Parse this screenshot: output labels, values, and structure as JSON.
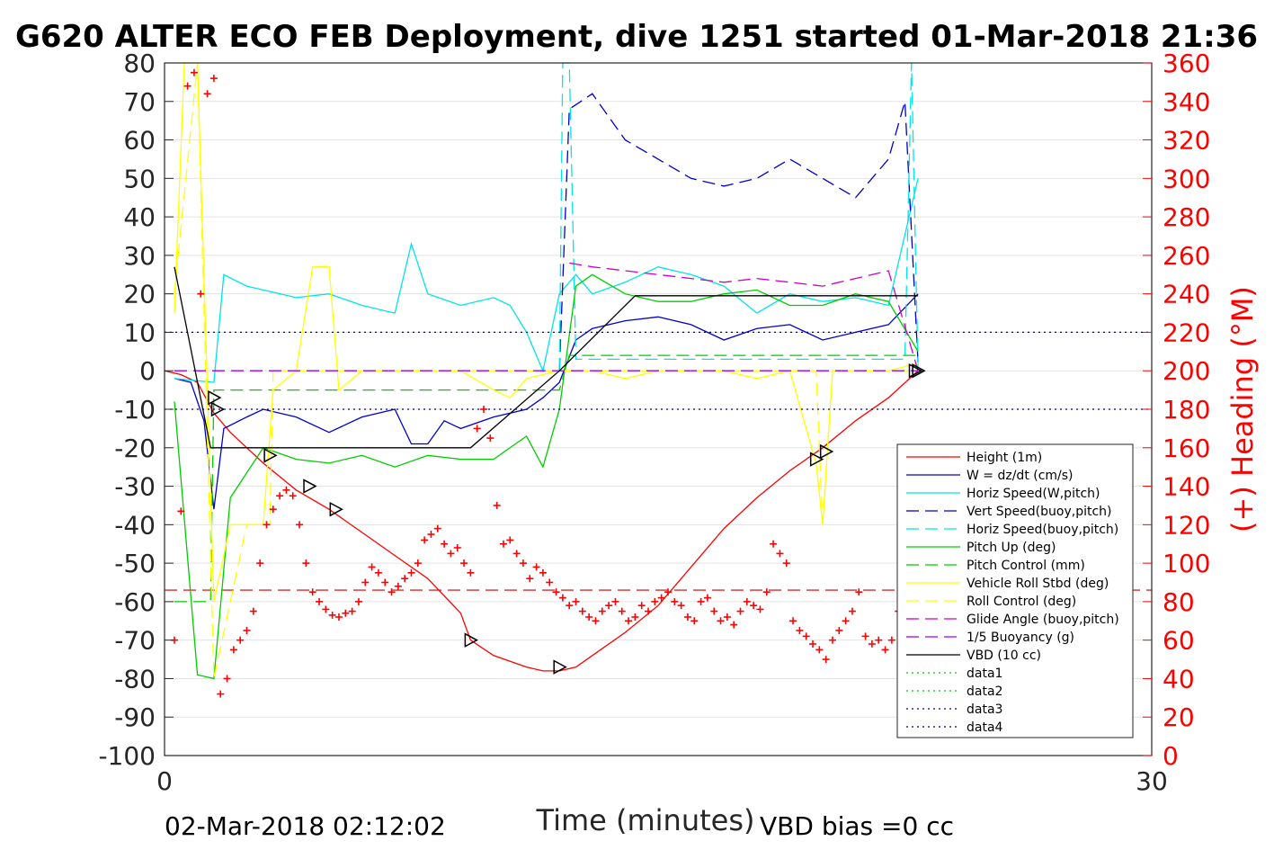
{
  "chart_data": {
    "type": "line",
    "title": "G620 ALTER ECO FEB Deployment, dive 1251 started 01-Mar-2018 21:36",
    "xlabel": "Time (minutes)",
    "ylabel_right": "(+) Heading (°M)",
    "xlim": [
      0,
      30
    ],
    "ylim_left": [
      -100,
      80
    ],
    "ylim_right": [
      0,
      360
    ],
    "x_ticks": [
      "0",
      "30"
    ],
    "y_ticks_left": [
      "80",
      "70",
      "60",
      "50",
      "40",
      "30",
      "20",
      "10",
      "0",
      "-10",
      "-20",
      "-30",
      "-40",
      "-50",
      "-60",
      "-70",
      "-80",
      "-90",
      "-100"
    ],
    "y_ticks_right": [
      "360",
      "340",
      "320",
      "300",
      "280",
      "260",
      "240",
      "220",
      "200",
      "180",
      "160",
      "140",
      "120",
      "100",
      "80",
      "60",
      "40",
      "20",
      "0"
    ],
    "grid": true,
    "legend_position": "lower-right",
    "footer_left": "02-Mar-2018 02:12:02",
    "footer_right": "VBD bias =0 cc",
    "series": [
      {
        "name": "Height (1m)",
        "color": "#ff0000",
        "style": "solid",
        "x": [
          0,
          0.5,
          1,
          1.5,
          2,
          3,
          4,
          5,
          6,
          7,
          8,
          9,
          9.3,
          10,
          11,
          11.5,
          12,
          12.5,
          13,
          14,
          15,
          16,
          17,
          18,
          19,
          20,
          21,
          22,
          22.9
        ],
        "y": [
          0,
          -1,
          -3,
          -11,
          -16,
          -24,
          -31,
          -36,
          -42,
          -48,
          -54,
          -63,
          -70,
          -74,
          -77,
          -78,
          -78,
          -77,
          -74,
          -68,
          -61,
          -51,
          -41,
          -33,
          -26,
          -20,
          -13,
          -7,
          0
        ]
      },
      {
        "name": "W = dz/dt (cm/s)",
        "color": "#0000cc",
        "style": "solid",
        "x": [
          0.3,
          0.8,
          1.2,
          1.5,
          1.8,
          2.5,
          3,
          4,
          5,
          6,
          7,
          7.5,
          8,
          8.5,
          9,
          10,
          11,
          11.5,
          12,
          12.5,
          13,
          14,
          15,
          16,
          17,
          18,
          19,
          20,
          21,
          22,
          22.9
        ],
        "y": [
          -2,
          -3,
          -13,
          -36,
          -15,
          -12,
          -10,
          -12,
          -16,
          -12,
          -10,
          -19,
          -19,
          -13,
          -15,
          -12,
          -10,
          -7,
          -3,
          8,
          11,
          13,
          14,
          12,
          8,
          11,
          12,
          8,
          10,
          12,
          20
        ]
      },
      {
        "name": "Horiz Speed(W,pitch)",
        "color": "#00e5e5",
        "style": "solid",
        "x": [
          0.3,
          1.5,
          1.8,
          2.5,
          3,
          4,
          5,
          6,
          7,
          7.5,
          8,
          9,
          10,
          10.5,
          11,
          11.5,
          12,
          12.5,
          13,
          14,
          15,
          16,
          17,
          18,
          19,
          20,
          21,
          22,
          22.9
        ],
        "y": [
          -2,
          -3,
          25,
          22,
          21,
          19,
          20,
          17,
          15,
          33,
          20,
          17,
          19,
          17,
          10,
          0,
          20,
          25,
          20,
          23,
          27,
          25,
          22,
          15,
          20,
          18,
          19,
          17,
          50
        ]
      },
      {
        "name": "Vert Speed(buoy,pitch)",
        "color": "#0000cc",
        "style": "dashed",
        "x": [
          12,
          12.3,
          13,
          14,
          15,
          16,
          17,
          18,
          19,
          20,
          21,
          22,
          22.5,
          22.9
        ],
        "y": [
          0,
          68,
          72,
          60,
          55,
          50,
          48,
          50,
          55,
          50,
          45,
          55,
          70,
          2
        ]
      },
      {
        "name": "Horiz Speed(buoy,pitch)",
        "color": "#00e5e5",
        "style": "dashed",
        "x": [
          12,
          12.1,
          12.3,
          12.5,
          22.5,
          22.7,
          22.9
        ],
        "y": [
          0,
          80,
          80,
          3,
          3,
          80,
          0
        ]
      },
      {
        "name": "Pitch Up (deg)",
        "color": "#00cc00",
        "style": "solid",
        "x": [
          0.3,
          1,
          1.5,
          2,
          3,
          4,
          5,
          6,
          7,
          8,
          9,
          10,
          11,
          11.5,
          12,
          12.5,
          13,
          14,
          15,
          16,
          17,
          18,
          19,
          20,
          21,
          22,
          22.9
        ],
        "y": [
          -8,
          -79,
          -80,
          -33,
          -20,
          -23,
          -24,
          -22,
          -25,
          -22,
          -23,
          -23,
          -17,
          -25,
          -10,
          22,
          25,
          20,
          18,
          18,
          20,
          21,
          17,
          17,
          20,
          18,
          5
        ]
      },
      {
        "name": "Pitch Control (mm)",
        "color": "#00cc00",
        "style": "dashed",
        "x": [
          0.3,
          1.4,
          1.5,
          2.5,
          10,
          12,
          12.3,
          22.9
        ],
        "y": [
          -60,
          -60,
          -5,
          -5,
          -5,
          -5,
          4,
          4
        ]
      },
      {
        "name": "Vehicle Roll Stbd (deg)",
        "color": "#ffff00",
        "style": "solid",
        "x": [
          0.3,
          0.6,
          1,
          1.5,
          2,
          3,
          3.3,
          4,
          4.5,
          5,
          5.3,
          6,
          7,
          8,
          9,
          10,
          10.5,
          11,
          12,
          13,
          14,
          15,
          16,
          17,
          18,
          19,
          19.8,
          20,
          20.3,
          21,
          22,
          22.9
        ],
        "y": [
          15,
          80,
          80,
          -60,
          -40,
          -40,
          -5,
          0,
          27,
          27,
          -5,
          0,
          0,
          0,
          0,
          -5,
          -7,
          -2,
          0,
          0,
          -2,
          0,
          0,
          0,
          -2,
          0,
          -24,
          -40,
          0,
          0,
          0,
          2
        ]
      },
      {
        "name": "Roll Control (deg)",
        "color": "#ffff00",
        "style": "dashed",
        "x": [
          0.3,
          1,
          1.5,
          2.5,
          3.2,
          3.3,
          10,
          12,
          19.8,
          20,
          20.3,
          22.9
        ],
        "y": [
          20,
          80,
          -80,
          -40,
          -40,
          0,
          0,
          0,
          0,
          -40,
          0,
          0
        ]
      },
      {
        "name": "Glide Angle (buoy,pitch)",
        "color": "#cc00cc",
        "style": "dashed",
        "x": [
          12.3,
          13,
          14,
          15,
          16,
          17,
          18,
          19,
          20,
          21,
          22,
          22.9
        ],
        "y": [
          28,
          27,
          26,
          25,
          24,
          23,
          24,
          23,
          22,
          24,
          26,
          0
        ]
      },
      {
        "name": "1/5 Buoyancy (g)",
        "color": "#9900ff",
        "style": "dashed",
        "x": [
          0.3,
          12,
          22.9
        ],
        "y": [
          0,
          0,
          0
        ]
      },
      {
        "name": "VBD (10 cc)",
        "color": "#000000",
        "style": "solid",
        "x": [
          0.3,
          1.4,
          9.3,
          12,
          14.3,
          22.9
        ],
        "y": [
          27,
          -20,
          -20,
          0,
          19.5,
          19.5
        ]
      },
      {
        "name": "data1",
        "color": "#00cc00",
        "style": "dotted",
        "x": [],
        "y": []
      },
      {
        "name": "data2",
        "color": "#00cc00",
        "style": "dotted",
        "x": [],
        "y": []
      },
      {
        "name": "data3",
        "color": "#000080",
        "style": "dotted",
        "x": [
          0,
          30
        ],
        "y": [
          10,
          10
        ]
      },
      {
        "name": "data4",
        "color": "#000080",
        "style": "dotted",
        "x": [
          0,
          30
        ],
        "y": [
          -10,
          -10
        ]
      }
    ],
    "reference_lines": [
      {
        "color": "#cc0000",
        "style": "dashed",
        "y_right": 86
      }
    ],
    "heading_points": {
      "color": "#ff0000",
      "marker": "+",
      "axis": "right",
      "x": [
        0.3,
        0.5,
        0.7,
        0.9,
        1.1,
        1.3,
        1.5,
        1.7,
        1.9,
        2.1,
        2.3,
        2.5,
        2.7,
        2.9,
        3.1,
        3.3,
        3.5,
        3.7,
        3.9,
        4.1,
        4.3,
        4.5,
        4.7,
        4.9,
        5.1,
        5.3,
        5.5,
        5.7,
        5.9,
        6.1,
        6.3,
        6.5,
        6.7,
        6.9,
        7.1,
        7.3,
        7.5,
        7.7,
        7.9,
        8.1,
        8.3,
        8.5,
        8.7,
        8.9,
        9.1,
        9.3,
        9.5,
        9.7,
        9.9,
        10.1,
        10.3,
        10.5,
        10.7,
        10.9,
        11.1,
        11.3,
        11.5,
        11.7,
        11.9,
        12.1,
        12.3,
        12.5,
        12.7,
        12.9,
        13.1,
        13.3,
        13.5,
        13.7,
        13.9,
        14.1,
        14.3,
        14.5,
        14.7,
        14.9,
        15.1,
        15.3,
        15.5,
        15.7,
        15.9,
        16.1,
        16.3,
        16.5,
        16.7,
        16.9,
        17.1,
        17.3,
        17.5,
        17.7,
        17.9,
        18.1,
        18.3,
        18.5,
        18.7,
        18.9,
        19.1,
        19.3,
        19.5,
        19.7,
        19.9,
        20.1,
        20.3,
        20.5,
        20.7,
        20.9,
        21.1,
        21.3,
        21.5,
        21.7,
        21.9,
        22.1,
        22.3,
        22.5
      ],
      "y": [
        60,
        127,
        348,
        355,
        240,
        344,
        352,
        32,
        40,
        55,
        60,
        65,
        75,
        100,
        120,
        128,
        135,
        138,
        135,
        120,
        100,
        85,
        80,
        76,
        73,
        72,
        74,
        75,
        80,
        90,
        98,
        95,
        90,
        85,
        88,
        92,
        95,
        100,
        112,
        115,
        118,
        110,
        105,
        108,
        100,
        95,
        170,
        180,
        165,
        130,
        110,
        112,
        105,
        100,
        92,
        98,
        95,
        90,
        85,
        82,
        78,
        80,
        75,
        72,
        70,
        75,
        78,
        80,
        75,
        70,
        72,
        78,
        75,
        80,
        82,
        85,
        80,
        78,
        72,
        70,
        80,
        82,
        75,
        70,
        72,
        68,
        75,
        80,
        78,
        76,
        85,
        110,
        105,
        100,
        70,
        65,
        62,
        58,
        55,
        50,
        60,
        65,
        70,
        75,
        85,
        62,
        58,
        60,
        55,
        60,
        75,
        85
      ]
    },
    "event_markers": {
      "marker": "triangle",
      "color": "#000000",
      "x": [
        1.5,
        1.6,
        3.2,
        4.4,
        5.2,
        9.3,
        12.0,
        19.8,
        20.1,
        22.8,
        22.9
      ],
      "y": [
        -7,
        -10,
        -22,
        -30,
        -36,
        -70,
        -77,
        -23,
        -21,
        0,
        0
      ]
    }
  }
}
